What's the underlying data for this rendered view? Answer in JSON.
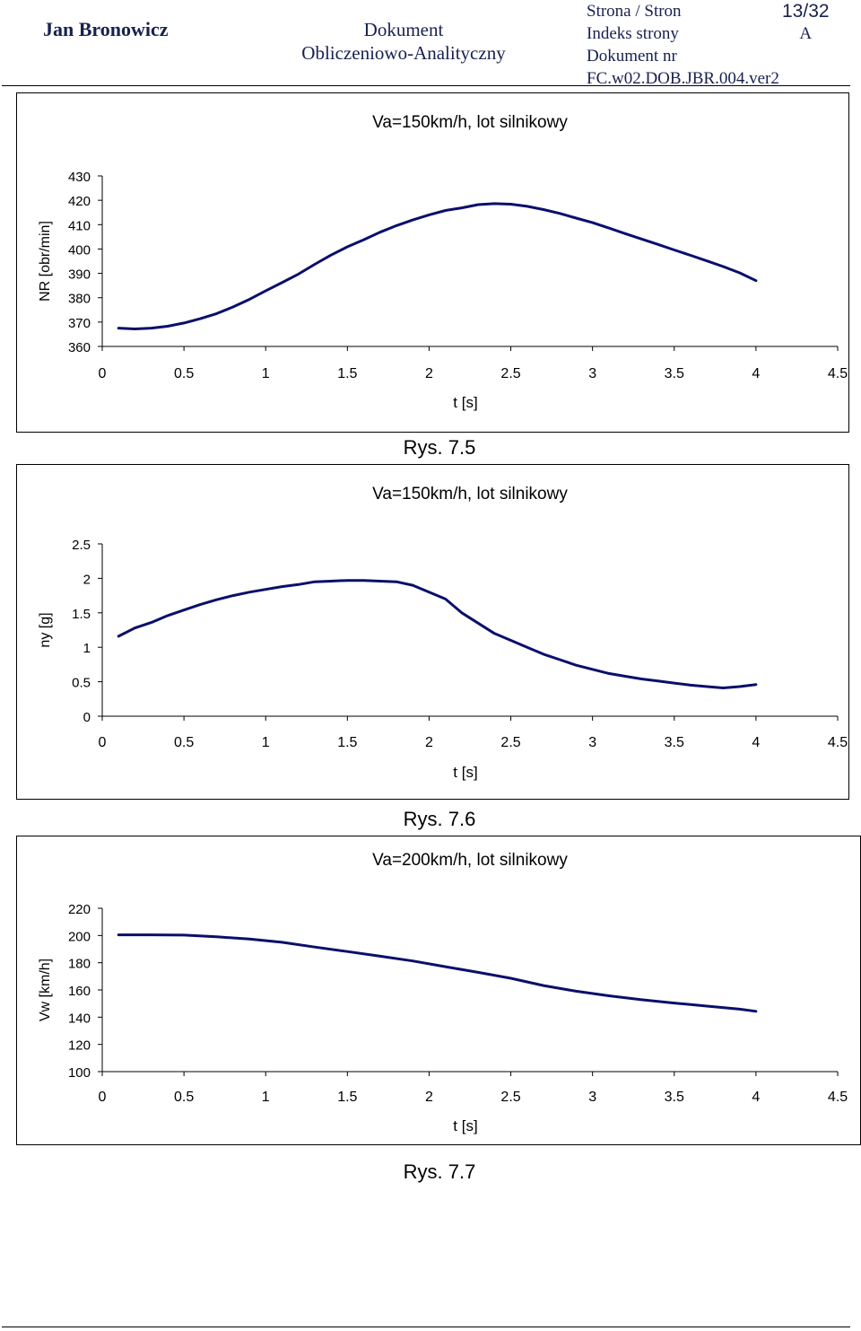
{
  "header": {
    "author": "Jan Bronowicz",
    "doc_line1": "Dokument",
    "doc_line2": "Obliczeniowo-Analityczny",
    "meta_line1": "Strona / Stron",
    "meta_line2": "Indeks strony",
    "meta_line3": "Dokument nr",
    "meta_line4": "FC.w02.DOB.JBR.004.ver2",
    "page": "13/32",
    "index": "A"
  },
  "captions": [
    "Rys. 7.5",
    "Rys. 7.6",
    "Rys. 7.7"
  ],
  "chart_data": [
    {
      "type": "line",
      "title": "Va=150km/h, lot silnikowy",
      "xlabel": "t [s]",
      "ylabel": "NR [obr/min]",
      "xlim": [
        0,
        4.5
      ],
      "ylim": [
        360,
        430
      ],
      "x_ticks": [
        "0",
        "0.5",
        "1",
        "1.5",
        "2",
        "2.5",
        "3",
        "3.5",
        "4",
        "4.5"
      ],
      "y_ticks": [
        "360",
        "370",
        "380",
        "390",
        "400",
        "410",
        "420",
        "430"
      ],
      "grid": false,
      "legend": "none",
      "series": [
        {
          "color": "#0a0f6b",
          "x": [
            0.1,
            0.2,
            0.3,
            0.4,
            0.5,
            0.6,
            0.7,
            0.8,
            0.9,
            1.0,
            1.1,
            1.2,
            1.3,
            1.4,
            1.5,
            1.6,
            1.7,
            1.8,
            1.9,
            2.0,
            2.1,
            2.2,
            2.3,
            2.4,
            2.5,
            2.6,
            2.7,
            2.8,
            2.9,
            3.0,
            3.1,
            3.2,
            3.3,
            3.4,
            3.5,
            3.6,
            3.7,
            3.8,
            3.9,
            4.0
          ],
          "y": [
            367.5,
            367.2,
            367.5,
            368.3,
            369.6,
            371.4,
            373.5,
            376.2,
            379.3,
            382.8,
            386.2,
            389.7,
            393.7,
            397.5,
            400.9,
            403.8,
            406.9,
            409.6,
            411.9,
            414.0,
            415.8,
            416.9,
            418.2,
            418.6,
            418.4,
            417.5,
            416.2,
            414.6,
            412.7,
            410.8,
            408.6,
            406.3,
            404.1,
            401.9,
            399.6,
            397.4,
            395.1,
            392.8,
            390.2,
            387.0
          ]
        }
      ]
    },
    {
      "type": "line",
      "title": "Va=150km/h, lot silnikowy",
      "xlabel": "t [s]",
      "ylabel": "ny [g]",
      "xlim": [
        0,
        4.5
      ],
      "ylim": [
        0,
        2.5
      ],
      "x_ticks": [
        "0",
        "0.5",
        "1",
        "1.5",
        "2",
        "2.5",
        "3",
        "3.5",
        "4",
        "4.5"
      ],
      "y_ticks": [
        "0",
        "0.5",
        "1",
        "1.5",
        "2",
        "2.5"
      ],
      "grid": false,
      "legend": "none",
      "series": [
        {
          "color": "#0a0f6b",
          "x": [
            0.1,
            0.2,
            0.3,
            0.4,
            0.5,
            0.6,
            0.7,
            0.8,
            0.9,
            1.0,
            1.1,
            1.2,
            1.3,
            1.4,
            1.5,
            1.6,
            1.7,
            1.8,
            1.9,
            2.0,
            2.1,
            2.2,
            2.3,
            2.4,
            2.5,
            2.6,
            2.7,
            2.8,
            2.9,
            3.0,
            3.1,
            3.2,
            3.3,
            3.4,
            3.5,
            3.6,
            3.7,
            3.8,
            3.9,
            4.0
          ],
          "y": [
            1.16,
            1.28,
            1.36,
            1.46,
            1.54,
            1.62,
            1.69,
            1.75,
            1.8,
            1.84,
            1.88,
            1.91,
            1.95,
            1.96,
            1.97,
            1.97,
            1.96,
            1.95,
            1.9,
            1.8,
            1.7,
            1.5,
            1.35,
            1.2,
            1.1,
            1.0,
            0.9,
            0.82,
            0.74,
            0.68,
            0.62,
            0.58,
            0.54,
            0.51,
            0.48,
            0.45,
            0.43,
            0.41,
            0.43,
            0.46
          ]
        }
      ]
    },
    {
      "type": "line",
      "title": "Va=200km/h, lot silnikowy",
      "xlabel": "t [s]",
      "ylabel": "Vw [km/h]",
      "xlim": [
        0,
        4.5
      ],
      "ylim": [
        100,
        220
      ],
      "x_ticks": [
        "0",
        "0.5",
        "1",
        "1.5",
        "2",
        "2.5",
        "3",
        "3.5",
        "4",
        "4.5"
      ],
      "y_ticks": [
        "100",
        "120",
        "140",
        "160",
        "180",
        "200",
        "220"
      ],
      "grid": false,
      "legend": "none",
      "series": [
        {
          "color": "#0a0f6b",
          "x": [
            0.1,
            0.3,
            0.5,
            0.7,
            0.9,
            1.1,
            1.3,
            1.5,
            1.7,
            1.9,
            2.1,
            2.3,
            2.5,
            2.7,
            2.9,
            3.1,
            3.3,
            3.5,
            3.7,
            3.9,
            4.0
          ],
          "y": [
            200.5,
            200.5,
            200.3,
            199,
            197.4,
            195,
            191.5,
            188.2,
            184.8,
            181.3,
            177.1,
            172.9,
            168.6,
            163.2,
            159.1,
            155.7,
            152.8,
            150.4,
            148.1,
            145.9,
            144.3
          ]
        }
      ]
    }
  ]
}
